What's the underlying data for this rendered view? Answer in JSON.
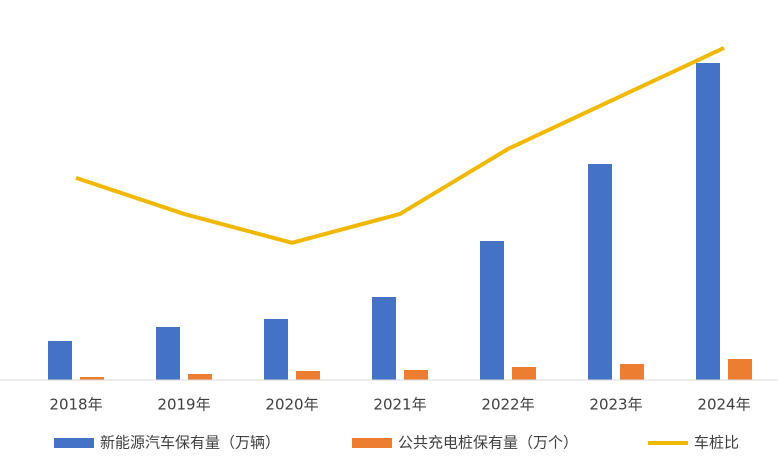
{
  "chart_data": {
    "type": "bar-line",
    "categories": [
      "2018年",
      "2019年",
      "2020年",
      "2021年",
      "2022年",
      "2023年",
      "2024年"
    ],
    "series": [
      {
        "name": "新能源汽车保有量（万辆）",
        "type": "bar",
        "color": "#4472c4",
        "values": [
          390,
          530,
          610,
          830,
          1390,
          2160,
          3170
        ]
      },
      {
        "name": "公共充电桩保有量（万个）",
        "type": "bar",
        "color": "#ed7d31",
        "values": [
          30,
          60,
          90,
          100,
          130,
          160,
          210
        ]
      },
      {
        "name": "车桩比",
        "type": "line",
        "axis": "y2",
        "color": "#f0b800",
        "values": [
          7.0,
          6.5,
          6.1,
          6.5,
          7.4,
          8.1,
          8.8
        ]
      }
    ],
    "ylim": [
      0,
      3610
    ],
    "y2lim": [
      4.2,
      9.2
    ],
    "legend": "bottom"
  }
}
